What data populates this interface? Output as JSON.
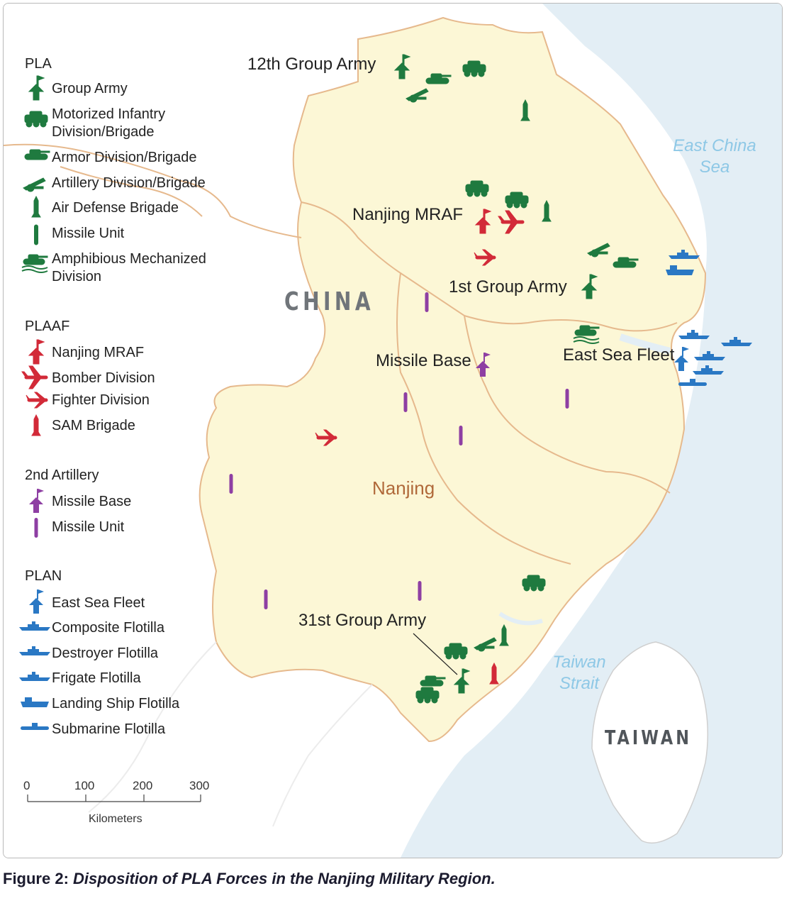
{
  "legend": {
    "pla": {
      "heading": "PLA",
      "items": [
        {
          "icon": "group-army-flag-icon",
          "label": "Group Army"
        },
        {
          "icon": "motorized-infantry-icon",
          "label_lines": [
            "Motorized Infantry",
            "Division/Brigade"
          ]
        },
        {
          "icon": "tank-icon",
          "label": "Armor Division/Brigade"
        },
        {
          "icon": "artillery-icon",
          "label": "Artillery Division/Brigade"
        },
        {
          "icon": "air-defense-missile-icon",
          "label": "Air Defense Brigade"
        },
        {
          "icon": "missile-unit-icon",
          "label": "Missile Unit"
        },
        {
          "icon": "amphibious-tank-icon",
          "label_lines": [
            "Amphibious Mechanized",
            "Division"
          ]
        }
      ]
    },
    "plaaf": {
      "heading": "PLAAF",
      "items": [
        {
          "icon": "mraf-flag-icon",
          "label": "Nanjing MRAF"
        },
        {
          "icon": "bomber-icon",
          "label": "Bomber Division"
        },
        {
          "icon": "fighter-icon",
          "label": "Fighter Division"
        },
        {
          "icon": "sam-icon",
          "label": "SAM Brigade"
        }
      ]
    },
    "second_artillery": {
      "heading": "2nd Artillery",
      "items": [
        {
          "icon": "missile-base-flag-icon",
          "label": "Missile Base"
        },
        {
          "icon": "missile-unit-icon",
          "label": "Missile Unit"
        }
      ]
    },
    "plan": {
      "heading": "PLAN",
      "items": [
        {
          "icon": "fleet-flag-icon",
          "label": "East Sea Fleet"
        },
        {
          "icon": "composite-ship-icon",
          "label": "Composite Flotilla"
        },
        {
          "icon": "destroyer-icon",
          "label": "Destroyer Flotilla"
        },
        {
          "icon": "frigate-icon",
          "label": "Frigate Flotilla"
        },
        {
          "icon": "landing-ship-icon",
          "label": "Landing Ship Flotilla"
        },
        {
          "icon": "submarine-icon",
          "label": "Submarine Flotilla"
        }
      ]
    }
  },
  "map_labels": {
    "group_army_12": "12th Group Army",
    "mraf": "Nanjing MRAF",
    "group_army_1": "1st Group Army",
    "missile_base": "Missile Base",
    "east_sea_fleet": "East Sea Fleet",
    "group_army_31": "31st Group Army",
    "china": "CHINA",
    "nanjing": "Nanjing",
    "taiwan": "TAIWAN",
    "east_china_sea": [
      "East China",
      "Sea"
    ],
    "taiwan_strait": [
      "Taiwan",
      "Strait"
    ]
  },
  "scale_bar": {
    "ticks": [
      "0",
      "100",
      "200",
      "300"
    ],
    "unit": "Kilometers"
  },
  "caption": {
    "prefix": "Figure 2:",
    "body": "Disposition of PLA Forces in the Nanjing Military Region."
  },
  "colors": {
    "pla": "#1f7a3f",
    "plaaf": "#d22a38",
    "second_artillery": "#8e3fa3",
    "plan": "#2a78c4",
    "region_fill": "#fcf7d6",
    "border": "#e6b98d",
    "sea": "#e3eef5"
  }
}
